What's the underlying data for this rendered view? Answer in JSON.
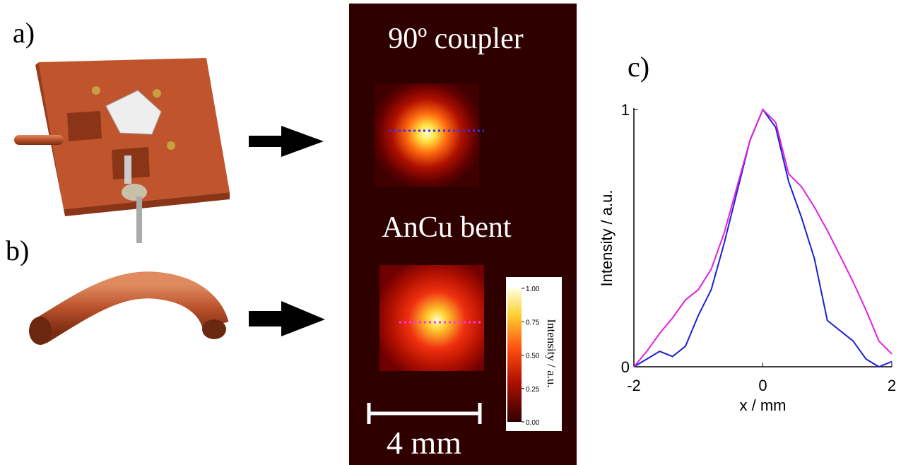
{
  "panel_labels": [
    "a)",
    "b)",
    "c)"
  ],
  "images": {
    "top_title": "90º coupler",
    "bottom_title": "AnCu bent",
    "scale_bar": "4 mm",
    "colorbar": {
      "label": "Intensity / a.u.",
      "lim": [
        0,
        1
      ],
      "ticks": [
        {
          "value": 0,
          "label": "0.00"
        },
        {
          "value": 0.25,
          "label": "0.25"
        },
        {
          "value": 0.5,
          "label": "0.50"
        },
        {
          "value": 0.75,
          "label": "0.75"
        },
        {
          "value": 1,
          "label": "1.00"
        }
      ]
    }
  },
  "chart_data": {
    "type": "line",
    "xlabel": "x / mm",
    "ylabel": "Intensity / a.u.",
    "xlim": [
      -2,
      2
    ],
    "ylim": [
      0,
      1
    ],
    "xticks": [
      -2,
      0,
      2
    ],
    "yticks": [
      0,
      1
    ],
    "x": [
      -2,
      -1.8,
      -1.6,
      -1.4,
      -1.2,
      -1,
      -0.8,
      -0.6,
      -0.4,
      -0.2,
      0,
      0.2,
      0.4,
      0.6,
      0.8,
      1,
      1.2,
      1.4,
      1.6,
      1.8,
      2
    ],
    "series": [
      {
        "color": "#1f1fd0",
        "values": [
          0,
          0.03,
          0.06,
          0.04,
          0.08,
          0.2,
          0.3,
          0.48,
          0.68,
          0.88,
          1.0,
          0.93,
          0.72,
          0.58,
          0.42,
          0.18,
          0.14,
          0.1,
          0.03,
          0,
          0.02
        ]
      },
      {
        "color": "#e020e0",
        "values": [
          0,
          0.06,
          0.13,
          0.19,
          0.26,
          0.3,
          0.38,
          0.52,
          0.7,
          0.88,
          1.0,
          0.95,
          0.75,
          0.7,
          0.62,
          0.53,
          0.43,
          0.33,
          0.22,
          0.1,
          0.05
        ]
      }
    ]
  }
}
